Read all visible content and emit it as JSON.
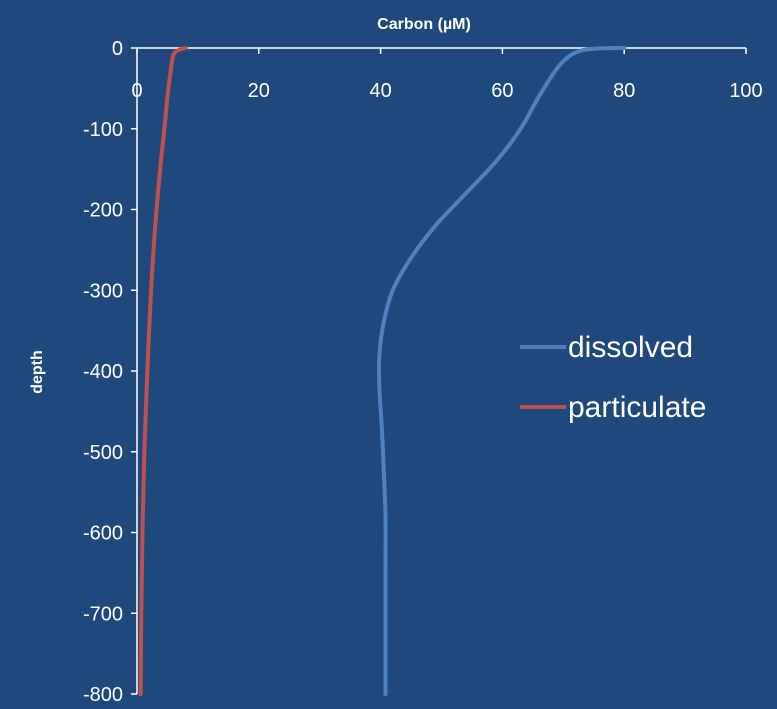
{
  "colors": {
    "background": "#1f497d",
    "axis": "#ffffff",
    "dissolved": "#4f81bd",
    "particulate": "#c0504d"
  },
  "chart_data": {
    "type": "line",
    "title": "",
    "xlabel": "Carbon (µM)",
    "ylabel": "depth",
    "xlim": [
      0,
      100
    ],
    "ylim": [
      -800,
      0
    ],
    "x_axis_position": "top",
    "x_ticks": [
      0,
      20,
      40,
      60,
      80,
      100
    ],
    "x_tick_labels": [
      "0",
      "20",
      "40",
      "60",
      "80",
      "100"
    ],
    "y_ticks": [
      0,
      -100,
      -200,
      -300,
      -400,
      -500,
      -600,
      -700,
      -800
    ],
    "y_tick_labels": [
      "0",
      "-100",
      "-200",
      "-300",
      "-400",
      "-500",
      "-600",
      "-700",
      "-800"
    ],
    "grid": false,
    "legend_position": "right",
    "series": [
      {
        "name": "dissolved",
        "color": "#4f81bd",
        "points": [
          [
            80,
            0
          ],
          [
            76,
            -0.5
          ],
          [
            73,
            -3
          ],
          [
            71,
            -10
          ],
          [
            69,
            -25
          ],
          [
            66,
            -60
          ],
          [
            63,
            -100
          ],
          [
            59,
            -140
          ],
          [
            54,
            -180
          ],
          [
            49,
            -220
          ],
          [
            45,
            -260
          ],
          [
            42,
            -300
          ],
          [
            40.5,
            -340
          ],
          [
            39.8,
            -380
          ],
          [
            39.8,
            -420
          ],
          [
            40.2,
            -470
          ],
          [
            40.5,
            -520
          ],
          [
            40.8,
            -580
          ],
          [
            40.8,
            -650
          ],
          [
            40.8,
            -720
          ],
          [
            40.8,
            -800
          ]
        ]
      },
      {
        "name": "particulate",
        "color": "#c0504d",
        "points": [
          [
            8,
            0
          ],
          [
            7,
            -2
          ],
          [
            6,
            -8
          ],
          [
            5.5,
            -30
          ],
          [
            5,
            -60
          ],
          [
            4.5,
            -100
          ],
          [
            3.8,
            -150
          ],
          [
            3,
            -220
          ],
          [
            2.3,
            -300
          ],
          [
            1.7,
            -400
          ],
          [
            1.2,
            -500
          ],
          [
            0.9,
            -600
          ],
          [
            0.7,
            -700
          ],
          [
            0.6,
            -800
          ]
        ]
      }
    ]
  }
}
